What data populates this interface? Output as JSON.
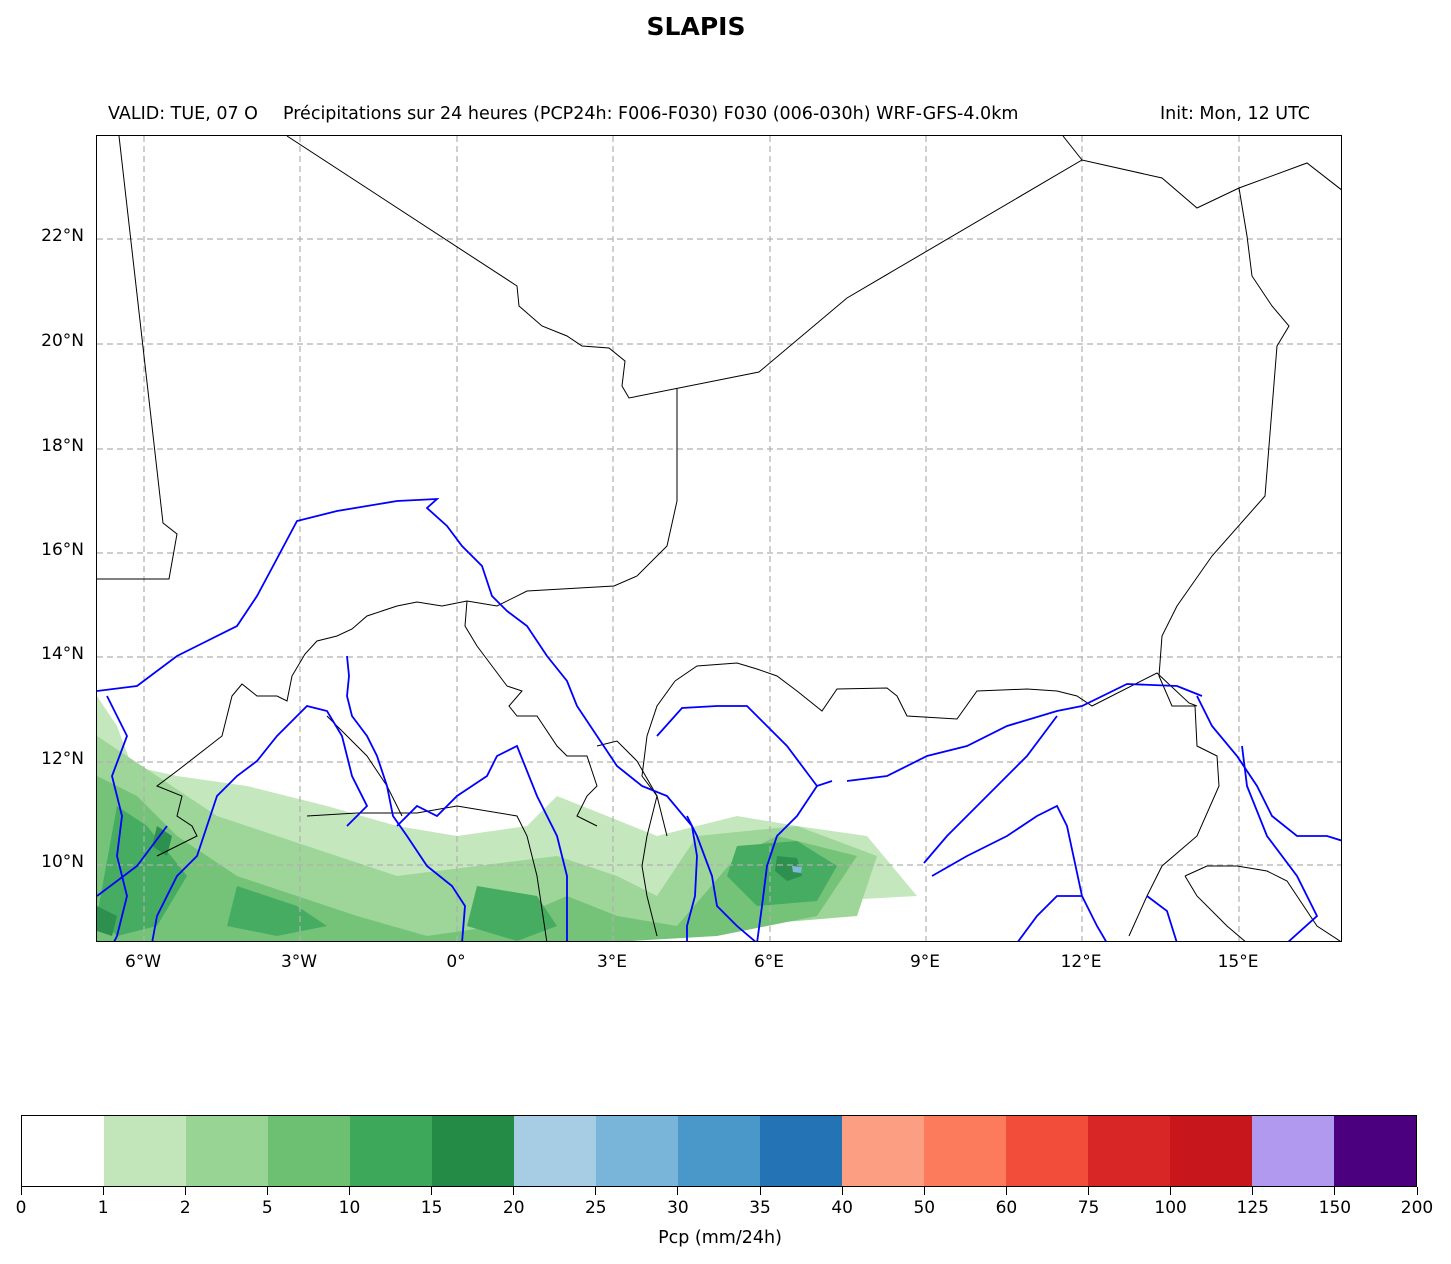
{
  "figure": {
    "title": "SLAPIS",
    "subtitle_left": "VALID: TUE, 07 O",
    "subtitle_center": "Précipitations sur 24 heures (PCP24h: F006-F030) F030 (006-030h) WRF-GFS-4.0km",
    "subtitle_right": "Init: Mon, 12 UTC"
  },
  "map": {
    "lat_labels": [
      "22°N",
      "20°N",
      "18°N",
      "16°N",
      "14°N",
      "12°N",
      "10°N"
    ],
    "lon_labels": [
      "6°W",
      "3°W",
      "0°",
      "3°E",
      "6°E",
      "9°E",
      "12°E",
      "15°E"
    ],
    "border_color": "#000000",
    "river_color": "#0000ff",
    "gridline_style": "dashed grey"
  },
  "colorbar": {
    "label": "Pcp (mm/24h)",
    "ticks": [
      "0",
      "1",
      "2",
      "5",
      "10",
      "15",
      "20",
      "25",
      "30",
      "35",
      "40",
      "50",
      "60",
      "75",
      "100",
      "125",
      "150",
      "200"
    ],
    "colors": [
      "#ffffff",
      "#c2e6ba",
      "#98d493",
      "#6dc072",
      "#3da85a",
      "#238b45",
      "#a6cde3",
      "#78b5d9",
      "#4a98c9",
      "#2473b5",
      "#fc9e81",
      "#fc7b5c",
      "#f24c3a",
      "#d82626",
      "#c8171c",
      "#b199ef",
      "#4b0080"
    ]
  }
}
